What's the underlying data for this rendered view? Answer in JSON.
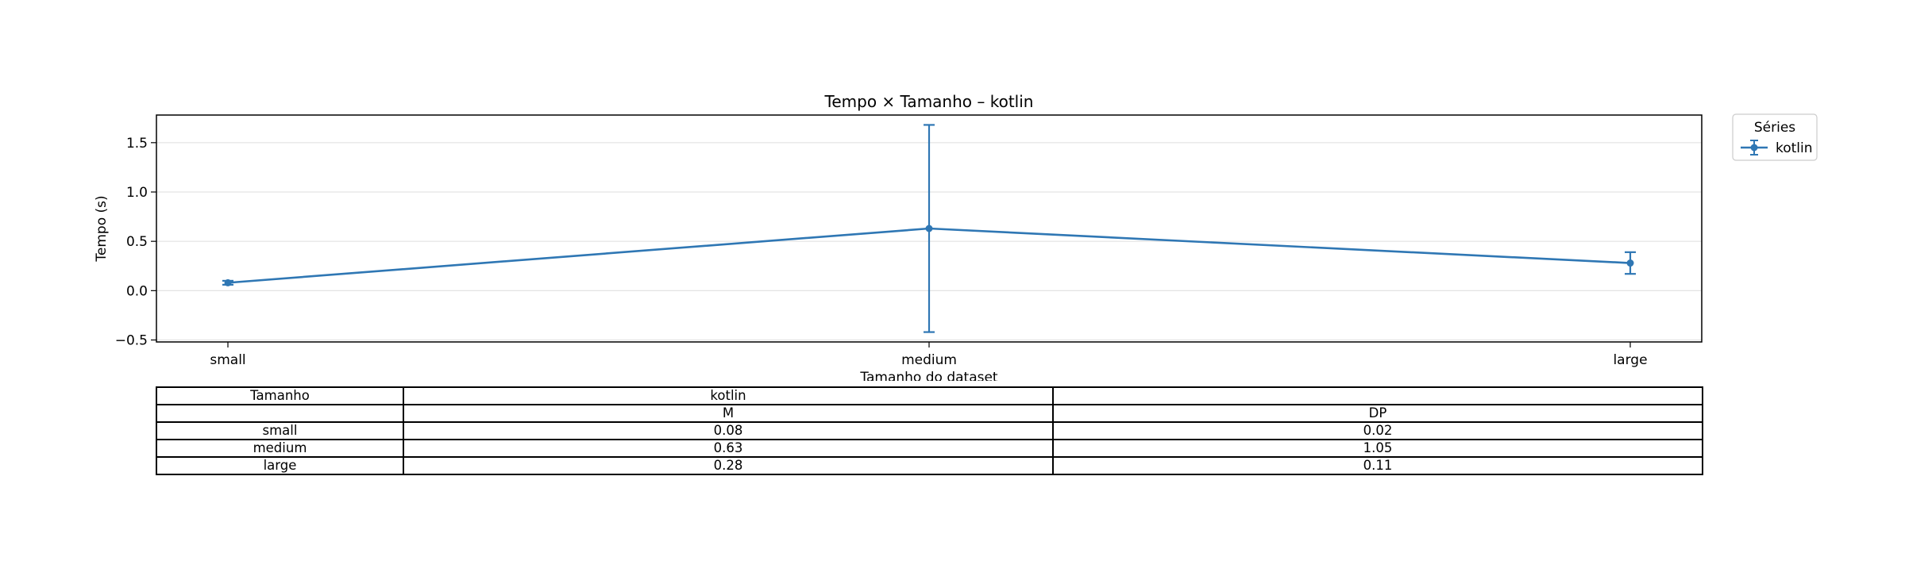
{
  "chart_data": {
    "type": "line",
    "title": "Tempo × Tamanho – kotlin",
    "xlabel": "Tamanho do dataset",
    "ylabel": "Tempo (s)",
    "categories": [
      "small",
      "medium",
      "large"
    ],
    "ylim": [
      -0.52,
      1.78
    ],
    "yticks": [
      -0.5,
      0.0,
      0.5,
      1.0,
      1.5
    ],
    "ytick_labels": [
      "−0.5",
      "0.0",
      "0.5",
      "1.0",
      "1.5"
    ],
    "grid": "y",
    "error_bars": true,
    "series": [
      {
        "name": "kotlin",
        "color": "#2f77b4",
        "values": [
          0.08,
          0.63,
          0.28
        ],
        "errors": [
          0.02,
          1.05,
          0.11
        ]
      }
    ],
    "legend": {
      "title": "Séries",
      "placement": "outside-top-right"
    }
  },
  "table": {
    "header_row1": [
      "Tamanho",
      "kotlin",
      ""
    ],
    "header_row2": [
      "",
      "M",
      "DP"
    ],
    "rows": [
      [
        "small",
        "0.08",
        "0.02"
      ],
      [
        "medium",
        "0.63",
        "1.05"
      ],
      [
        "large",
        "0.28",
        "0.11"
      ]
    ]
  }
}
